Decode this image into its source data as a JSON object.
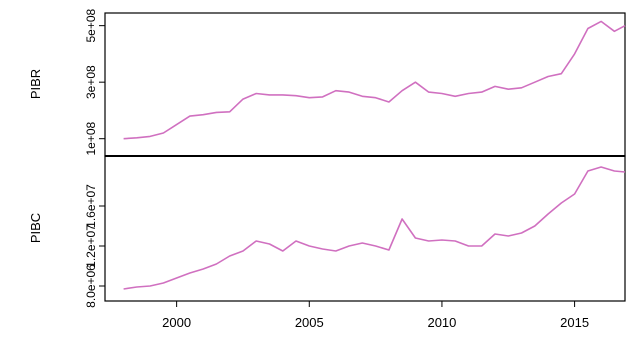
{
  "chart_data": [
    {
      "type": "line",
      "ylabel": "PIBR",
      "y_ticks": [
        {
          "value": 100000000,
          "label": "1e+08"
        },
        {
          "value": 300000000,
          "label": "3e+08"
        },
        {
          "value": 500000000,
          "label": "5e+08"
        }
      ],
      "ylim": [
        60000000,
        520000000
      ],
      "xlim": [
        1997.3,
        2016.9
      ],
      "color": "#d070c0",
      "series": [
        {
          "x": [
            1998.0,
            1998.5,
            1999.0,
            1999.5,
            2000.0,
            2000.5,
            2001.0,
            2001.5,
            2002.0,
            2002.5,
            2003.0,
            2003.5,
            2004.0,
            2004.5,
            2005.0,
            2005.5,
            2006.0,
            2006.5,
            2007.0,
            2007.5,
            2008.0,
            2008.5,
            2009.0,
            2009.5,
            2010.0,
            2010.5,
            2011.0,
            2011.5,
            2012.0,
            2012.5,
            2013.0,
            2013.5,
            2014.0,
            2014.5,
            2015.0,
            2015.5,
            2016.0,
            2016.5,
            2016.9
          ],
          "y": [
            100000000,
            103000000,
            108000000,
            120000000,
            150000000,
            180000000,
            185000000,
            193000000,
            195000000,
            240000000,
            260000000,
            255000000,
            255000000,
            252000000,
            245000000,
            248000000,
            270000000,
            265000000,
            250000000,
            245000000,
            230000000,
            270000000,
            300000000,
            265000000,
            260000000,
            250000000,
            260000000,
            265000000,
            285000000,
            275000000,
            280000000,
            300000000,
            320000000,
            330000000,
            400000000,
            490000000,
            515000000,
            480000000,
            500000000
          ]
        }
      ]
    },
    {
      "type": "line",
      "ylabel": "PIBC",
      "y_ticks": [
        {
          "value": 8000000,
          "label": "8.0e+06"
        },
        {
          "value": 12000000,
          "label": "1.2e+07"
        },
        {
          "value": 16000000,
          "label": "1.6e+07"
        }
      ],
      "ylim": [
        7000000,
        20200000
      ],
      "xlim": [
        1997.3,
        2016.9
      ],
      "color": "#d070c0",
      "series": [
        {
          "x": [
            1998.0,
            1998.5,
            1999.0,
            1999.5,
            2000.0,
            2000.5,
            2001.0,
            2001.5,
            2002.0,
            2002.5,
            2003.0,
            2003.5,
            2004.0,
            2004.5,
            2005.0,
            2005.5,
            2006.0,
            2006.5,
            2007.0,
            2007.5,
            2008.0,
            2008.5,
            2009.0,
            2009.5,
            2010.0,
            2010.5,
            2011.0,
            2011.5,
            2012.0,
            2012.5,
            2013.0,
            2013.5,
            2014.0,
            2014.5,
            2015.0,
            2015.5,
            2016.0,
            2016.5,
            2016.9
          ],
          "y": [
            7700000,
            7900000,
            8000000,
            8300000,
            8800000,
            9300000,
            9700000,
            10200000,
            11000000,
            11500000,
            12500000,
            12200000,
            11500000,
            12500000,
            12000000,
            11700000,
            11500000,
            12000000,
            12300000,
            12000000,
            11600000,
            14700000,
            12800000,
            12500000,
            12600000,
            12500000,
            12000000,
            12000000,
            13200000,
            13000000,
            13300000,
            14000000,
            15200000,
            16300000,
            17200000,
            19500000,
            19900000,
            19500000,
            19400000
          ]
        }
      ]
    }
  ],
  "x_ticks": [
    {
      "value": 2000,
      "label": "2000"
    },
    {
      "value": 2005,
      "label": "2005"
    },
    {
      "value": 2010,
      "label": "2010"
    },
    {
      "value": 2015,
      "label": "2015"
    }
  ]
}
